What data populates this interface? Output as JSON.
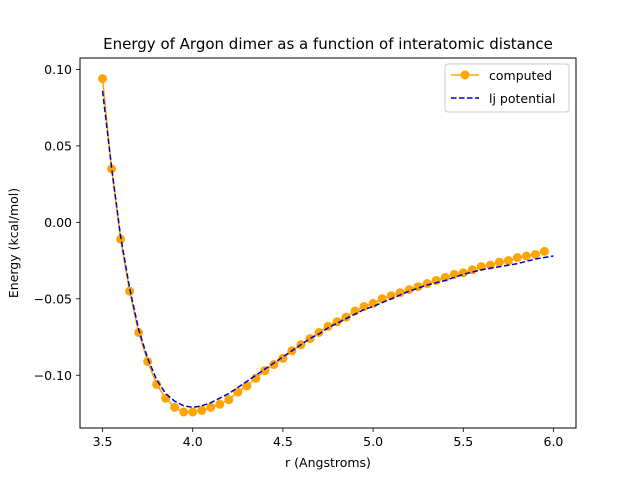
{
  "chart_data": {
    "type": "line",
    "title": "Energy of Argon dimer as a function of interatomic distance",
    "xlabel": "r (Angstroms)",
    "ylabel": "Energy (kcal/mol)",
    "xlim": [
      3.375,
      6.125
    ],
    "ylim": [
      -0.1345,
      0.1075
    ],
    "xticks": [
      3.5,
      4.0,
      4.5,
      5.0,
      5.5,
      6.0
    ],
    "xtick_labels": [
      "3.5",
      "4.0",
      "4.5",
      "5.0",
      "5.5",
      "6.0"
    ],
    "yticks": [
      0.1,
      0.05,
      0.0,
      -0.05,
      -0.1
    ],
    "ytick_labels": [
      "0.10",
      "0.05",
      "0.00",
      "−0.05",
      "−0.10"
    ],
    "grid": false,
    "legend": "top-right",
    "series": [
      {
        "name": "computed",
        "style": "line-with-markers",
        "color": "#ffa500",
        "x": [
          3.5,
          3.55,
          3.6,
          3.65,
          3.7,
          3.75,
          3.8,
          3.85,
          3.9,
          3.95,
          4.0,
          4.05,
          4.1,
          4.15,
          4.2,
          4.25,
          4.3,
          4.35,
          4.4,
          4.45,
          4.5,
          4.55,
          4.6,
          4.65,
          4.7,
          4.75,
          4.8,
          4.85,
          4.9,
          4.95,
          5.0,
          5.05,
          5.1,
          5.15,
          5.2,
          5.25,
          5.3,
          5.35,
          5.4,
          5.45,
          5.5,
          5.55,
          5.6,
          5.65,
          5.7,
          5.75,
          5.8,
          5.85,
          5.9,
          5.95
        ],
        "y": [
          0.094,
          0.035,
          -0.011,
          -0.045,
          -0.072,
          -0.091,
          -0.106,
          -0.115,
          -0.121,
          -0.124,
          -0.124,
          -0.123,
          -0.121,
          -0.119,
          -0.116,
          -0.111,
          -0.107,
          -0.102,
          -0.097,
          -0.093,
          -0.089,
          -0.084,
          -0.08,
          -0.076,
          -0.072,
          -0.068,
          -0.065,
          -0.062,
          -0.058,
          -0.055,
          -0.053,
          -0.05,
          -0.048,
          -0.046,
          -0.044,
          -0.042,
          -0.04,
          -0.038,
          -0.036,
          -0.034,
          -0.033,
          -0.031,
          -0.029,
          -0.028,
          -0.026,
          -0.025,
          -0.023,
          -0.022,
          -0.021,
          -0.019
        ]
      },
      {
        "name": "lj potential",
        "style": "dashed",
        "color": "#0000cc",
        "x": [
          3.5,
          3.55,
          3.6,
          3.65,
          3.7,
          3.75,
          3.8,
          3.85,
          3.9,
          3.95,
          4.0,
          4.05,
          4.1,
          4.15,
          4.2,
          4.25,
          4.3,
          4.35,
          4.4,
          4.45,
          4.5,
          4.55,
          4.6,
          4.65,
          4.7,
          4.75,
          4.8,
          4.85,
          4.9,
          4.95,
          5.0,
          5.1,
          5.2,
          5.3,
          5.4,
          5.5,
          5.6,
          5.7,
          5.8,
          5.9,
          6.0
        ],
        "y": [
          0.086,
          0.036,
          -0.009,
          -0.043,
          -0.07,
          -0.089,
          -0.103,
          -0.112,
          -0.117,
          -0.12,
          -0.121,
          -0.12,
          -0.118,
          -0.115,
          -0.112,
          -0.108,
          -0.104,
          -0.1,
          -0.096,
          -0.092,
          -0.088,
          -0.084,
          -0.08,
          -0.076,
          -0.073,
          -0.069,
          -0.066,
          -0.063,
          -0.06,
          -0.057,
          -0.055,
          -0.05,
          -0.045,
          -0.041,
          -0.038,
          -0.034,
          -0.031,
          -0.029,
          -0.027,
          -0.024,
          -0.022
        ]
      }
    ]
  }
}
